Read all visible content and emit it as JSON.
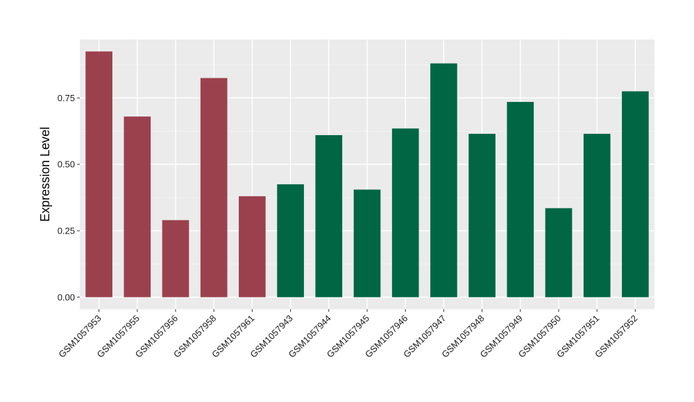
{
  "chart_data": {
    "type": "bar",
    "title": "",
    "xlabel": "",
    "ylabel": "Expression Level",
    "ylim": [
      -0.045,
      0.97
    ],
    "yticks": [
      0.0,
      0.25,
      0.5,
      0.75
    ],
    "ytick_labels": [
      "0.00",
      "0.25",
      "0.50",
      "0.75"
    ],
    "grid": true,
    "background": "#ebebeb",
    "categories": [
      "GSM1057953",
      "GSM1057955",
      "GSM1057956",
      "GSM1057958",
      "GSM1057961",
      "GSM1057943",
      "GSM1057944",
      "GSM1057945",
      "GSM1057946",
      "GSM1057947",
      "GSM1057948",
      "GSM1057949",
      "GSM1057950",
      "GSM1057951",
      "GSM1057952"
    ],
    "values": [
      0.925,
      0.68,
      0.29,
      0.825,
      0.38,
      0.425,
      0.61,
      0.405,
      0.635,
      0.88,
      0.615,
      0.735,
      0.335,
      0.615,
      0.775
    ],
    "bar_colors": [
      "#9b414e",
      "#9b414e",
      "#9b414e",
      "#9b414e",
      "#9b414e",
      "#006644",
      "#006644",
      "#006644",
      "#006644",
      "#006644",
      "#006644",
      "#006644",
      "#006644",
      "#006644",
      "#006644"
    ]
  }
}
